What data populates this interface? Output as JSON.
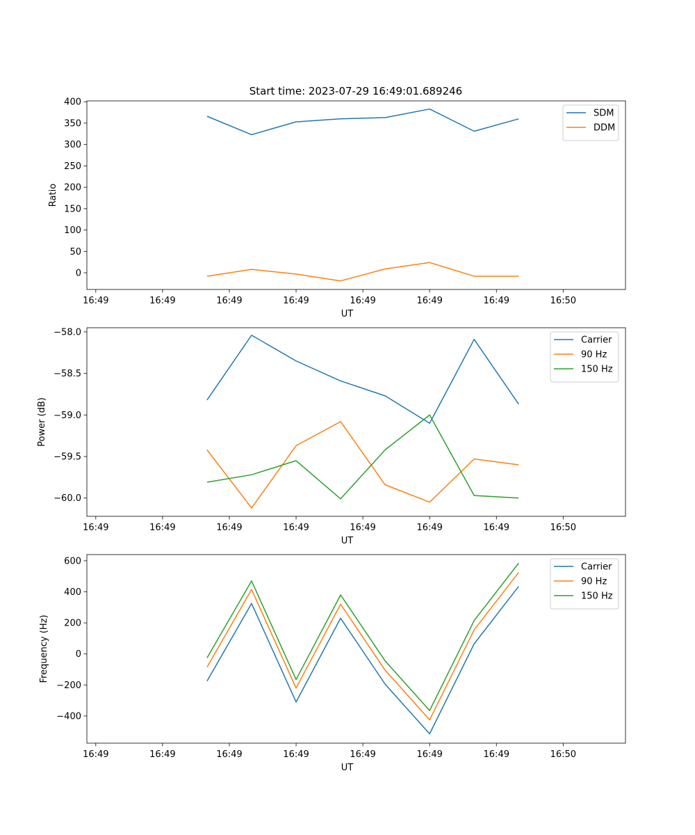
{
  "figure": {
    "title": "Start time: 2023-07-29 16:49:01.689246"
  },
  "chart_data": [
    {
      "type": "line",
      "title": "Start time: 2023-07-29 16:49:01.689246",
      "xlabel": "UT",
      "ylabel": "Ratio",
      "x": [
        1,
        2,
        3,
        4,
        5,
        6,
        7,
        8
      ],
      "xlim": [
        -1.7,
        10.4
      ],
      "xticks": [
        {
          "value": -1.5,
          "label": "16:49"
        },
        {
          "value": 0,
          "label": "16:49"
        },
        {
          "value": 1.5,
          "label": "16:49"
        },
        {
          "value": 3,
          "label": "16:49"
        },
        {
          "value": 4.5,
          "label": "16:49"
        },
        {
          "value": 6,
          "label": "16:49"
        },
        {
          "value": 7.5,
          "label": "16:49"
        },
        {
          "value": 9,
          "label": "16:50"
        }
      ],
      "ylim": [
        -39,
        402
      ],
      "yticks": [
        {
          "value": 0,
          "label": "0"
        },
        {
          "value": 50,
          "label": "50"
        },
        {
          "value": 100,
          "label": "100"
        },
        {
          "value": 150,
          "label": "150"
        },
        {
          "value": 200,
          "label": "200"
        },
        {
          "value": 250,
          "label": "250"
        },
        {
          "value": 300,
          "label": "300"
        },
        {
          "value": 350,
          "label": "350"
        },
        {
          "value": 400,
          "label": "400"
        }
      ],
      "legend": "upper-right",
      "series": [
        {
          "name": "SDM",
          "color": "#1f77b4",
          "values": [
            366,
            323,
            353,
            360,
            363,
            383,
            331,
            360
          ]
        },
        {
          "name": "DDM",
          "color": "#ff7f0e",
          "values": [
            -8,
            8,
            -3,
            -19,
            9,
            24,
            -8,
            -8
          ]
        }
      ]
    },
    {
      "type": "line",
      "title": "",
      "xlabel": "UT",
      "ylabel": "Power (dB)",
      "x": [
        1,
        2,
        3,
        4,
        5,
        6,
        7,
        8
      ],
      "xlim": [
        -1.7,
        10.4
      ],
      "xticks": [
        {
          "value": -1.5,
          "label": "16:49"
        },
        {
          "value": 0,
          "label": "16:49"
        },
        {
          "value": 1.5,
          "label": "16:49"
        },
        {
          "value": 3,
          "label": "16:49"
        },
        {
          "value": 4.5,
          "label": "16:49"
        },
        {
          "value": 6,
          "label": "16:49"
        },
        {
          "value": 7.5,
          "label": "16:49"
        },
        {
          "value": 9,
          "label": "16:50"
        }
      ],
      "ylim": [
        -60.22,
        -57.95
      ],
      "yticks": [
        {
          "value": -60,
          "label": "−60.0"
        },
        {
          "value": -59.5,
          "label": "−59.5"
        },
        {
          "value": -59,
          "label": "−59.0"
        },
        {
          "value": -58.5,
          "label": "−58.5"
        },
        {
          "value": -58,
          "label": "−58.0"
        }
      ],
      "legend": "upper-right",
      "series": [
        {
          "name": "Carrier",
          "color": "#1f77b4",
          "values": [
            -58.82,
            -58.04,
            -58.35,
            -58.59,
            -58.77,
            -59.1,
            -58.09,
            -58.87
          ]
        },
        {
          "name": "90 Hz",
          "color": "#ff7f0e",
          "values": [
            -59.42,
            -60.12,
            -59.37,
            -59.08,
            -59.84,
            -60.05,
            -59.53,
            -59.6
          ]
        },
        {
          "name": "150 Hz",
          "color": "#2ca02c",
          "values": [
            -59.81,
            -59.72,
            -59.55,
            -60.01,
            -59.42,
            -59.0,
            -59.97,
            -60.0
          ]
        }
      ]
    },
    {
      "type": "line",
      "title": "",
      "xlabel": "UT",
      "ylabel": "Frequency (Hz)",
      "x": [
        1,
        2,
        3,
        4,
        5,
        6,
        7,
        8
      ],
      "xlim": [
        -1.7,
        10.4
      ],
      "xticks": [
        {
          "value": -1.5,
          "label": "16:49"
        },
        {
          "value": 0,
          "label": "16:49"
        },
        {
          "value": 1.5,
          "label": "16:49"
        },
        {
          "value": 3,
          "label": "16:49"
        },
        {
          "value": 4.5,
          "label": "16:49"
        },
        {
          "value": 6,
          "label": "16:49"
        },
        {
          "value": 7.5,
          "label": "16:49"
        },
        {
          "value": 9,
          "label": "16:50"
        }
      ],
      "ylim": [
        -575,
        640
      ],
      "yticks": [
        {
          "value": -400,
          "label": "−400"
        },
        {
          "value": -200,
          "label": "−200"
        },
        {
          "value": 0,
          "label": "0"
        },
        {
          "value": 200,
          "label": "200"
        },
        {
          "value": 400,
          "label": "400"
        },
        {
          "value": 600,
          "label": "600"
        }
      ],
      "legend": "upper-right",
      "series": [
        {
          "name": "Carrier",
          "color": "#1f77b4",
          "values": [
            -175,
            325,
            -310,
            230,
            -195,
            -515,
            65,
            435
          ]
        },
        {
          "name": "90 Hz",
          "color": "#ff7f0e",
          "values": [
            -85,
            415,
            -220,
            320,
            -105,
            -425,
            155,
            525
          ]
        },
        {
          "name": "150 Hz",
          "color": "#2ca02c",
          "values": [
            -25,
            470,
            -165,
            380,
            -45,
            -365,
            215,
            585
          ]
        }
      ]
    }
  ]
}
